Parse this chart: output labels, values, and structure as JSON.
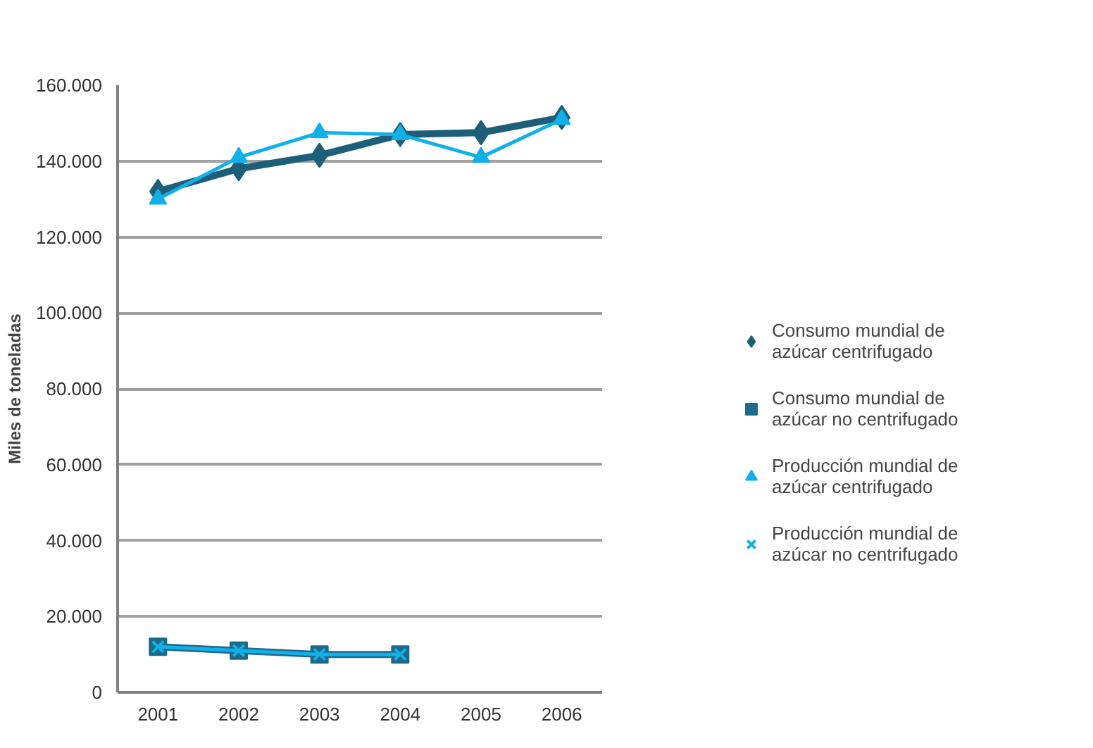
{
  "chart_data": {
    "type": "line",
    "ylabel": "Miles de toneladas",
    "categories": [
      "2001",
      "2002",
      "2003",
      "2004",
      "2005",
      "2006"
    ],
    "series": [
      {
        "name": "Consumo mundial de azúcar centrifugado",
        "color": "#1d5f78",
        "marker": "diamond",
        "values": [
          132000,
          138000,
          141500,
          147000,
          147500,
          151500
        ]
      },
      {
        "name": "Consumo mundial de azúcar no centrifugado",
        "color": "#1d6a8a",
        "marker": "square",
        "values": [
          12000,
          11000,
          10000,
          10000,
          null,
          null
        ]
      },
      {
        "name": "Producción mundial de azúcar centrifugado",
        "color": "#12b0e8",
        "marker": "triangle",
        "values": [
          130000,
          141000,
          147500,
          147000,
          141000,
          151000
        ]
      },
      {
        "name": "Producción mundial de azúcar no centrifugado",
        "color": "#12b0e8",
        "marker": "cross",
        "values": [
          12000,
          11000,
          10000,
          10000,
          null,
          null
        ]
      }
    ],
    "ylim": [
      0,
      160000
    ],
    "yticks": [
      {
        "value": 0,
        "label": "0"
      },
      {
        "value": 20000,
        "label": "20.000"
      },
      {
        "value": 40000,
        "label": "40.000"
      },
      {
        "value": 60000,
        "label": "60.000"
      },
      {
        "value": 80000,
        "label": "80.000"
      },
      {
        "value": 100000,
        "label": "100.000"
      },
      {
        "value": 120000,
        "label": "120.000"
      },
      {
        "value": 140000,
        "label": "140.000"
      },
      {
        "value": 160000,
        "label": "160.000"
      }
    ],
    "grid": "y",
    "legend": "right",
    "line_style": "solid"
  }
}
